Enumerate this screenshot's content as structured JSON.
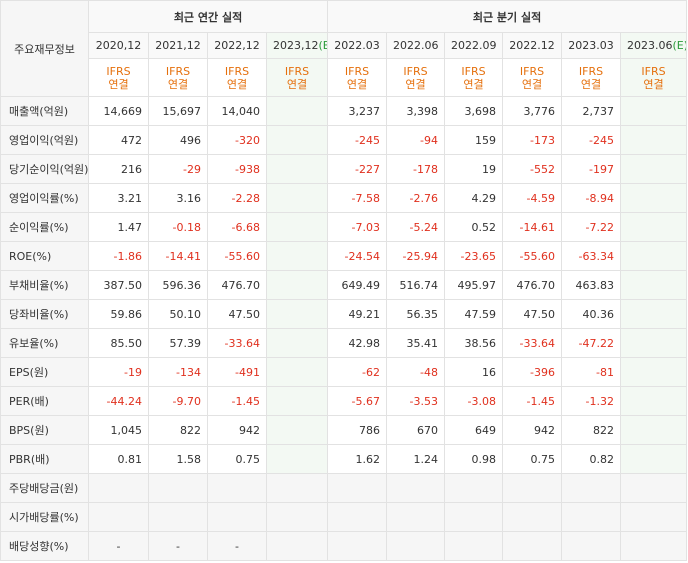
{
  "table": {
    "corner": "주요재무정보",
    "groups": [
      {
        "title": "최근 연간 실적",
        "columns": [
          {
            "date": "2020,12",
            "basis": "IFRS",
            "scope": "연결"
          },
          {
            "date": "2021,12",
            "basis": "IFRS",
            "scope": "연결"
          },
          {
            "date": "2022,12",
            "basis": "IFRS",
            "scope": "연결"
          },
          {
            "date": "2023,12",
            "mark": "(E)",
            "basis": "IFRS",
            "scope": "연결"
          }
        ]
      },
      {
        "title": "최근 분기 실적",
        "columns": [
          {
            "date": "2022.03",
            "basis": "IFRS",
            "scope": "연결"
          },
          {
            "date": "2022.06",
            "basis": "IFRS",
            "scope": "연결"
          },
          {
            "date": "2022.09",
            "basis": "IFRS",
            "scope": "연결"
          },
          {
            "date": "2022.12",
            "basis": "IFRS",
            "scope": "연결"
          },
          {
            "date": "2023.03",
            "basis": "IFRS",
            "scope": "연결"
          },
          {
            "date": "2023.06",
            "mark": "(E)",
            "basis": "IFRS",
            "scope": "연결"
          }
        ]
      }
    ],
    "row_groups": [
      {
        "rows": [
          {
            "label": "매출액(억원)",
            "cells": [
              "14,669",
              "15,697",
              "14,040",
              null,
              "3,237",
              "3,398",
              "3,698",
              "3,776",
              "2,737",
              null
            ]
          },
          {
            "label": "영업이익(억원)",
            "cells": [
              "472",
              "496",
              "-320",
              null,
              "-245",
              "-94",
              "159",
              "-173",
              "-245",
              null
            ]
          },
          {
            "label": "당기순이익(억원)",
            "cells": [
              "216",
              "-29",
              "-938",
              null,
              "-227",
              "-178",
              "19",
              "-552",
              "-197",
              null
            ]
          }
        ]
      },
      {
        "rows": [
          {
            "label": "영업이익률(%)",
            "cells": [
              "3.21",
              "3.16",
              "-2.28",
              null,
              "-7.58",
              "-2.76",
              "4.29",
              "-4.59",
              "-8.94",
              null
            ]
          },
          {
            "label": "순이익률(%)",
            "cells": [
              "1.47",
              "-0.18",
              "-6.68",
              null,
              "-7.03",
              "-5.24",
              "0.52",
              "-14.61",
              "-7.22",
              null
            ]
          },
          {
            "label": "ROE(%)",
            "cells": [
              "-1.86",
              "-14.41",
              "-55.60",
              null,
              "-24.54",
              "-25.94",
              "-23.65",
              "-55.60",
              "-63.34",
              null
            ]
          }
        ]
      },
      {
        "rows": [
          {
            "label": "부채비율(%)",
            "cells": [
              "387.50",
              "596.36",
              "476.70",
              null,
              "649.49",
              "516.74",
              "495.97",
              "476.70",
              "463.83",
              null
            ]
          },
          {
            "label": "당좌비율(%)",
            "cells": [
              "59.86",
              "50.10",
              "47.50",
              null,
              "49.21",
              "56.35",
              "47.59",
              "47.50",
              "40.36",
              null
            ]
          },
          {
            "label": "유보율(%)",
            "cells": [
              "85.50",
              "57.39",
              "-33.64",
              null,
              "42.98",
              "35.41",
              "38.56",
              "-33.64",
              "-47.22",
              null
            ]
          }
        ]
      },
      {
        "rows": [
          {
            "label": "EPS(원)",
            "cells": [
              "-19",
              "-134",
              "-491",
              null,
              "-62",
              "-48",
              "16",
              "-396",
              "-81",
              null
            ]
          },
          {
            "label": "PER(배)",
            "cells": [
              "-44.24",
              "-9.70",
              "-1.45",
              null,
              "-5.67",
              "-3.53",
              "-3.08",
              "-1.45",
              "-1.32",
              null
            ]
          },
          {
            "label": "BPS(원)",
            "cells": [
              "1,045",
              "822",
              "942",
              null,
              "786",
              "670",
              "649",
              "942",
              "822",
              null
            ]
          },
          {
            "label": "PBR(배)",
            "cells": [
              "0.81",
              "1.58",
              "0.75",
              null,
              "1.62",
              "1.24",
              "0.98",
              "0.75",
              "0.82",
              null
            ]
          }
        ]
      },
      {
        "shaded": true,
        "rows": [
          {
            "label": "주당배당금(원)",
            "cells": [
              null,
              null,
              null,
              null,
              null,
              null,
              null,
              null,
              null,
              null
            ]
          },
          {
            "label": "시가배당률(%)",
            "cells": [
              null,
              null,
              null,
              null,
              null,
              null,
              null,
              null,
              null,
              null
            ]
          },
          {
            "label": "배당성향(%)",
            "cells": [
              "-",
              "-",
              "-",
              null,
              null,
              null,
              null,
              null,
              null,
              null
            ]
          }
        ]
      }
    ]
  }
}
